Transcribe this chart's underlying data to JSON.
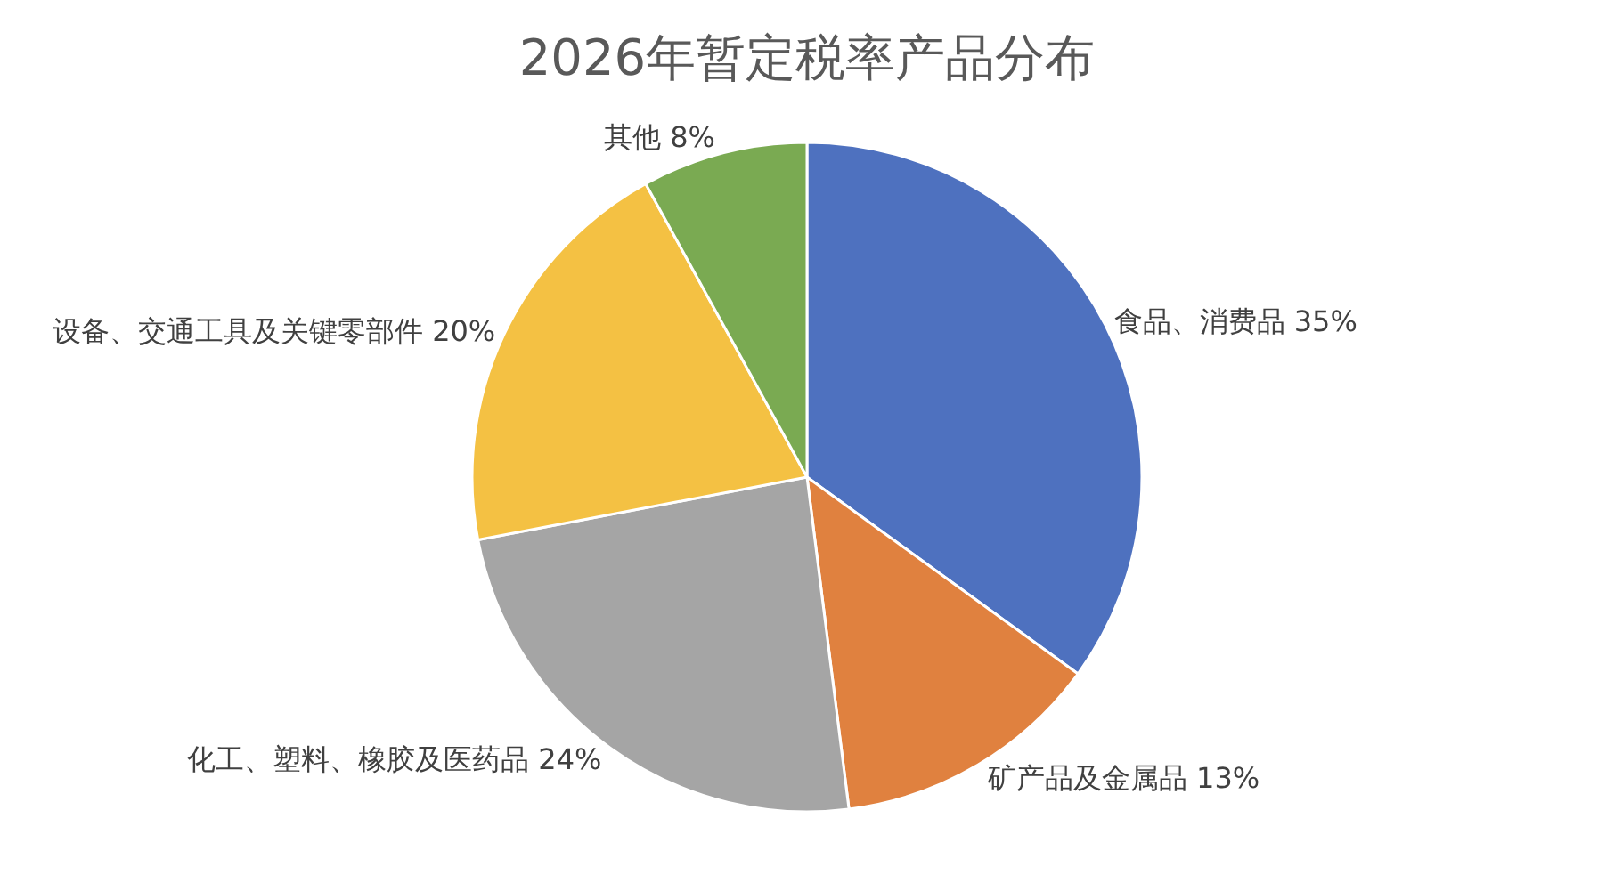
{
  "chart_data": {
    "type": "pie",
    "title": "2026年暂定税率产品分布",
    "categories": [
      "食品、消费品",
      "矿产品及金属品",
      "化工、塑料、橡胶及医药品",
      "设备、交通工具及关键零部件",
      "其他"
    ],
    "values": [
      35,
      13,
      24,
      20,
      8
    ],
    "value_labels": [
      "35%",
      "13%",
      "24%",
      "20%",
      "8%"
    ],
    "colors": [
      "#4e71bf",
      "#e0813f",
      "#a5a5a5",
      "#f4c143",
      "#7aaa52"
    ],
    "legend": false
  }
}
